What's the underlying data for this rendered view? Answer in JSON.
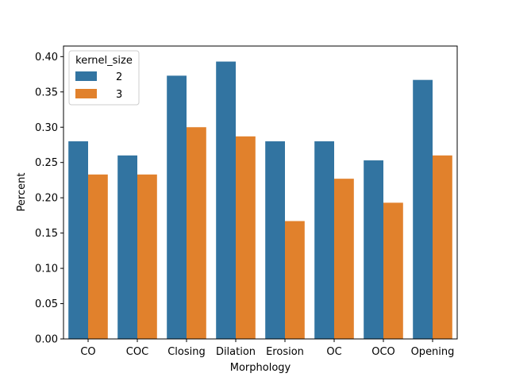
{
  "chart_data": {
    "type": "bar",
    "title": "",
    "xlabel": "Morphology",
    "ylabel": "Percent",
    "ylim": [
      0,
      0.415
    ],
    "yticks": [
      "0.00",
      "0.05",
      "0.10",
      "0.15",
      "0.20",
      "0.25",
      "0.30",
      "0.35",
      "0.40"
    ],
    "grid": false,
    "legend": {
      "title": "kernel_size",
      "placement": "top-left"
    },
    "categories": [
      "CO",
      "COC",
      "Closing",
      "Dilation",
      "Erosion",
      "OC",
      "OCO",
      "Opening"
    ],
    "series": [
      {
        "name": "2",
        "color": "#3274a1",
        "values": [
          0.28,
          0.26,
          0.373,
          0.393,
          0.28,
          0.28,
          0.253,
          0.367
        ]
      },
      {
        "name": "3",
        "color": "#e1812c",
        "values": [
          0.233,
          0.233,
          0.3,
          0.287,
          0.167,
          0.227,
          0.193,
          0.26
        ]
      }
    ]
  }
}
